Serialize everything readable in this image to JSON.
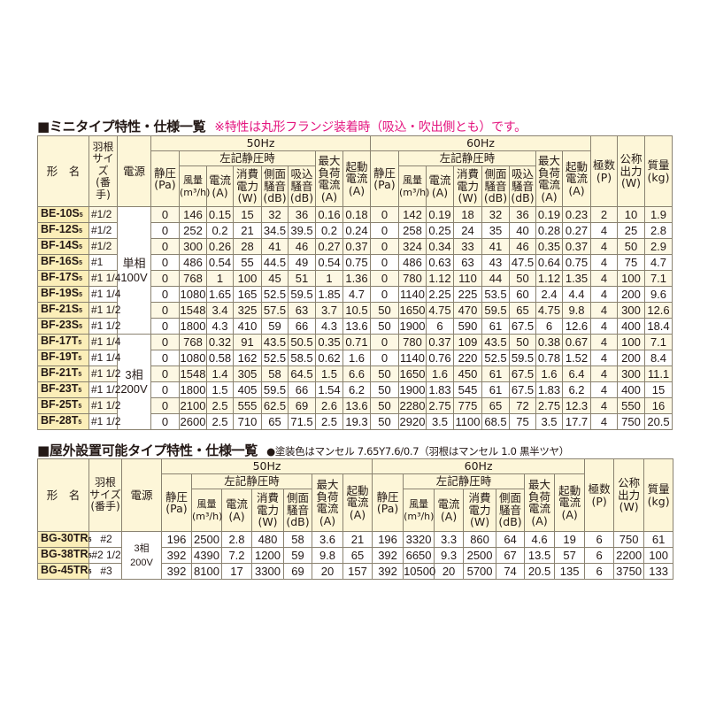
{
  "section1": {
    "title": "■ミニタイプ特性・仕様一覧",
    "note": "※特性は丸形フランジ装着時（吸込・吹出側とも）です。",
    "note_color": "#e4157f",
    "headers": {
      "model": "形　名",
      "blade": "羽根\nサイズ\n(番手)",
      "power": "電源",
      "hz50": "50Hz",
      "hz60": "60Hz",
      "static_pressure": "静圧\n(Pa)",
      "at_pressure": "左記静圧時",
      "airflow": "風量\n(m³/h)",
      "current": "電流\n(A)",
      "consumption": "消費\n電力\n(W)",
      "side_noise": "側面\n騒音\n(dB)",
      "intake_noise": "吸込\n騒音\n(dB)",
      "max_current": "最大\n負荷\n電流\n(A)",
      "start_current": "起動\n電流\n(A)",
      "poles": "極数\n(P)",
      "output": "公称\n出力\n(W)",
      "mass": "質量\n(kg)"
    },
    "power_groups": [
      {
        "label": "単相\n100V",
        "rows": 8
      },
      {
        "label": "3相\n200V",
        "rows": 6
      }
    ],
    "rows": [
      {
        "model": "BE-10S",
        "suffix": "5",
        "blade": "#1/2",
        "v": [
          "0",
          "146",
          "0.15",
          "15",
          "32",
          "36",
          "0.16",
          "0.18",
          "0",
          "142",
          "0.19",
          "18",
          "32",
          "36",
          "0.19",
          "0.23",
          "2",
          "10",
          "1.9"
        ]
      },
      {
        "model": "BF-12S",
        "suffix": "5",
        "blade": "#1/2",
        "v": [
          "0",
          "252",
          "0.2",
          "21",
          "34.5",
          "39.5",
          "0.2",
          "0.24",
          "0",
          "258",
          "0.25",
          "24",
          "35",
          "40",
          "0.28",
          "0.27",
          "4",
          "25",
          "2.8"
        ]
      },
      {
        "model": "BF-14S",
        "suffix": "5",
        "blade": "#1/2",
        "v": [
          "0",
          "300",
          "0.26",
          "28",
          "41",
          "46",
          "0.27",
          "0.37",
          "0",
          "324",
          "0.34",
          "33",
          "41",
          "46",
          "0.35",
          "0.37",
          "4",
          "50",
          "2.9"
        ]
      },
      {
        "model": "BF-16S",
        "suffix": "5",
        "blade": "#1",
        "v": [
          "0",
          "486",
          "0.54",
          "55",
          "44.5",
          "49",
          "0.54",
          "0.75",
          "0",
          "486",
          "0.63",
          "63",
          "43",
          "47.5",
          "0.64",
          "0.75",
          "4",
          "75",
          "4.7"
        ]
      },
      {
        "model": "BF-17S",
        "suffix": "5",
        "blade": "#1 1/4",
        "v": [
          "0",
          "768",
          "1",
          "100",
          "45",
          "51",
          "1",
          "1.36",
          "0",
          "780",
          "1.12",
          "110",
          "44",
          "50",
          "1.12",
          "1.35",
          "4",
          "100",
          "7.1"
        ]
      },
      {
        "model": "BF-19S",
        "suffix": "5",
        "blade": "#1 1/4",
        "v": [
          "0",
          "1080",
          "1.65",
          "165",
          "52.5",
          "59.5",
          "1.85",
          "4.7",
          "0",
          "1140",
          "2.25",
          "225",
          "53.5",
          "60",
          "2.4",
          "4.4",
          "4",
          "200",
          "9.6"
        ]
      },
      {
        "model": "BF-21S",
        "suffix": "5",
        "blade": "#1 1/2",
        "v": [
          "0",
          "1548",
          "3.4",
          "325",
          "57.5",
          "63",
          "3.7",
          "10.5",
          "50",
          "1650",
          "4.75",
          "470",
          "59.5",
          "65",
          "4.75",
          "9.8",
          "4",
          "300",
          "12.6"
        ]
      },
      {
        "model": "BF-23S",
        "suffix": "5",
        "blade": "#1 1/2",
        "v": [
          "0",
          "1800",
          "4.3",
          "410",
          "59",
          "66",
          "4.3",
          "13.6",
          "50",
          "1900",
          "6",
          "590",
          "61",
          "67.5",
          "6",
          "12.6",
          "4",
          "400",
          "18.4"
        ]
      },
      {
        "model": "BF-17T",
        "suffix": "5",
        "blade": "#1 1/4",
        "v": [
          "0",
          "768",
          "0.32",
          "91",
          "43.5",
          "50.5",
          "0.35",
          "0.71",
          "0",
          "780",
          "0.37",
          "109",
          "43.5",
          "50",
          "0.38",
          "0.67",
          "4",
          "100",
          "7.1"
        ]
      },
      {
        "model": "BF-19T",
        "suffix": "5",
        "blade": "#1 1/4",
        "v": [
          "0",
          "1080",
          "0.58",
          "162",
          "52.5",
          "58.5",
          "0.62",
          "1.6",
          "0",
          "1140",
          "0.76",
          "220",
          "52.5",
          "59.5",
          "0.78",
          "1.52",
          "4",
          "200",
          "8.4"
        ]
      },
      {
        "model": "BF-21T",
        "suffix": "5",
        "blade": "#1 1/2",
        "v": [
          "0",
          "1548",
          "1.4",
          "305",
          "58",
          "64.5",
          "1.5",
          "6.6",
          "50",
          "1650",
          "1.6",
          "450",
          "61",
          "67.5",
          "1.6",
          "6.4",
          "4",
          "300",
          "11.1"
        ]
      },
      {
        "model": "BF-23T",
        "suffix": "5",
        "blade": "#1 1/2",
        "v": [
          "0",
          "1800",
          "1.5",
          "405",
          "59.5",
          "66",
          "1.54",
          "6.2",
          "50",
          "1900",
          "1.83",
          "545",
          "61",
          "67.5",
          "1.83",
          "6.2",
          "4",
          "400",
          "15"
        ]
      },
      {
        "model": "BF-25T",
        "suffix": "5",
        "blade": "#1 1/2",
        "v": [
          "0",
          "2100",
          "2.5",
          "555",
          "62.5",
          "69",
          "2.6",
          "13.6",
          "50",
          "2280",
          "2.75",
          "775",
          "65",
          "72",
          "2.75",
          "12.3",
          "4",
          "550",
          "16"
        ]
      },
      {
        "model": "BF-28T",
        "suffix": "5",
        "blade": "#1 1/2",
        "v": [
          "0",
          "2600",
          "2.5",
          "710",
          "65",
          "71.5",
          "2.5",
          "19.3",
          "50",
          "2920",
          "3.5",
          "1100",
          "68.5",
          "75",
          "3.5",
          "17.7",
          "4",
          "750",
          "20.5"
        ]
      }
    ]
  },
  "section2": {
    "title": "■屋外設置可能タイプ特性・仕様一覧",
    "note": "●塗装色はマンセル 7.65Y7.6/0.7（羽根はマンセル 1.0 黒半ツヤ）",
    "power_groups": [
      {
        "label": "3相 200V",
        "rows": 3
      }
    ],
    "rows": [
      {
        "model": "BG-30TR",
        "suffix": "5",
        "blade": "#2",
        "v": [
          "196",
          "2500",
          "2.8",
          "480",
          "58",
          "3.6",
          "21",
          "196",
          "3320",
          "3.3",
          "860",
          "64",
          "4.6",
          "19",
          "6",
          "750",
          "61"
        ]
      },
      {
        "model": "BG-38TR",
        "suffix": "5",
        "blade": "#2 1/2",
        "v": [
          "392",
          "4390",
          "7.2",
          "1200",
          "59",
          "9.8",
          "65",
          "392",
          "6650",
          "9.3",
          "2500",
          "67",
          "13.5",
          "57",
          "6",
          "2200",
          "100"
        ]
      },
      {
        "model": "BG-45TR",
        "suffix": "5",
        "blade": "#3",
        "v": [
          "392",
          "8100",
          "17",
          "3300",
          "69",
          "20",
          "157",
          "392",
          "10500",
          "20",
          "5700",
          "74",
          "20.5",
          "135",
          "6",
          "3750",
          "133"
        ]
      }
    ]
  }
}
